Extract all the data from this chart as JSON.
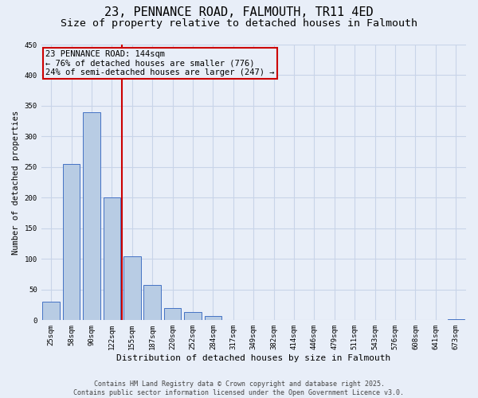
{
  "title": "23, PENNANCE ROAD, FALMOUTH, TR11 4ED",
  "subtitle": "Size of property relative to detached houses in Falmouth",
  "xlabel": "Distribution of detached houses by size in Falmouth",
  "ylabel": "Number of detached properties",
  "categories": [
    "25sqm",
    "58sqm",
    "90sqm",
    "122sqm",
    "155sqm",
    "187sqm",
    "220sqm",
    "252sqm",
    "284sqm",
    "317sqm",
    "349sqm",
    "382sqm",
    "414sqm",
    "446sqm",
    "479sqm",
    "511sqm",
    "543sqm",
    "576sqm",
    "608sqm",
    "641sqm",
    "673sqm"
  ],
  "values": [
    30,
    255,
    340,
    200,
    104,
    57,
    20,
    14,
    7,
    0,
    0,
    1,
    0,
    0,
    0,
    0,
    0,
    0,
    0,
    0,
    2
  ],
  "bar_color": "#b8cce4",
  "bar_edge_color": "#4472c4",
  "grid_color": "#c8d4e8",
  "background_color": "#e8eef8",
  "vline_color": "#cc0000",
  "annotation_text": "23 PENNANCE ROAD: 144sqm\n← 76% of detached houses are smaller (776)\n24% of semi-detached houses are larger (247) →",
  "annotation_box_color": "#cc0000",
  "footer_text": "Contains HM Land Registry data © Crown copyright and database right 2025.\nContains public sector information licensed under the Open Government Licence v3.0.",
  "ylim": [
    0,
    450
  ],
  "yticks": [
    0,
    50,
    100,
    150,
    200,
    250,
    300,
    350,
    400,
    450
  ],
  "title_fontsize": 11,
  "subtitle_fontsize": 9.5,
  "xlabel_fontsize": 8,
  "ylabel_fontsize": 7.5,
  "tick_fontsize": 6.5,
  "footer_fontsize": 6,
  "annotation_fontsize": 7.5
}
